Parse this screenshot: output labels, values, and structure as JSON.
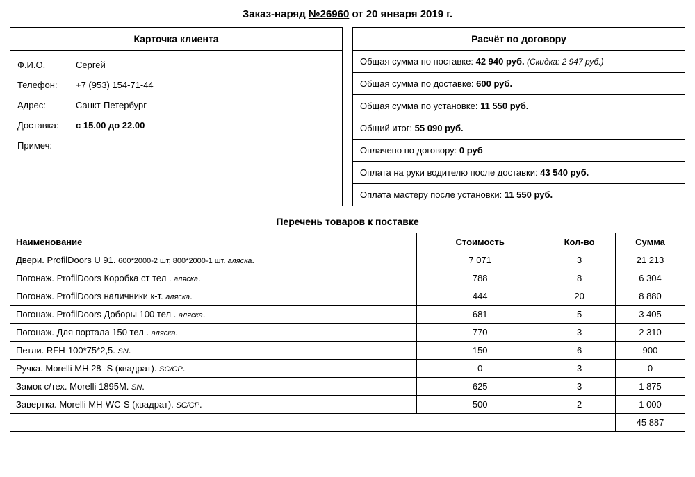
{
  "title": {
    "prefix": "Заказ-наряд ",
    "number_prefix": "№",
    "number": "26960",
    "suffix": " от 20 января 2019 г."
  },
  "client_card": {
    "header": "Карточка клиента",
    "rows": [
      {
        "label": "Ф.И.О.",
        "value": "Сергей",
        "bold": false
      },
      {
        "label": "Телефон:",
        "value": "+7 (953) 154-71-44",
        "bold": false
      },
      {
        "label": "Адрес:",
        "value": "Санкт-Петербург",
        "bold": false
      },
      {
        "label": "Доставка:",
        "value": "с 15.00 до 22.00",
        "bold": true
      },
      {
        "label": "Примеч:",
        "value": "",
        "bold": false
      }
    ]
  },
  "calc_card": {
    "header": "Расчёт по договору",
    "rows": [
      {
        "label": "Общая сумма по поставке: ",
        "amount": "42 940 руб.",
        "discount": "(Скидка: 2 947 руб.)"
      },
      {
        "label": "Общая сумма по доставке: ",
        "amount": "600 руб."
      },
      {
        "label": "Общая сумма по установке: ",
        "amount": "11 550 руб."
      },
      {
        "label": "Общий итог: ",
        "amount": "55 090 руб."
      },
      {
        "label": "Оплачено по договору: ",
        "amount": "0 руб"
      },
      {
        "label": "Оплата на руки водителю после доставки: ",
        "amount": "43 540 руб."
      },
      {
        "label": "Оплата мастеру после установки: ",
        "amount": "11 550 руб."
      }
    ]
  },
  "goods": {
    "section_title": "Перечень товаров к поставке",
    "columns": {
      "name": "Наименование",
      "cost": "Стоимость",
      "qty": "Кол-во",
      "sum": "Сумма"
    },
    "rows": [
      {
        "name": "Двери.  ProfilDoors U 91. ",
        "detail_plain": "600*2000-2 шт, 800*2000-1 шт.",
        "detail": " аляска",
        "tail": ".",
        "cost": "7 071",
        "qty": "3",
        "sum": "21 213"
      },
      {
        "name": "Погонаж.  ProfilDoors Коробка ст тел . ",
        "detail": "аляска",
        "tail": ".",
        "cost": "788",
        "qty": "8",
        "sum": "6 304"
      },
      {
        "name": "Погонаж.  ProfilDoors наличники к-т. ",
        "detail": "аляска",
        "tail": ".",
        "cost": "444",
        "qty": "20",
        "sum": "8 880"
      },
      {
        "name": "Погонаж.  ProfilDoors Доборы 100 тел . ",
        "detail": "аляска",
        "tail": ".",
        "cost": "681",
        "qty": "5",
        "sum": "3 405"
      },
      {
        "name": "Погонаж. Для портала 150 тел . ",
        "detail": "аляска",
        "tail": ".",
        "cost": "770",
        "qty": "3",
        "sum": "2 310"
      },
      {
        "name": "Петли. RFH-100*75*2,5. ",
        "detail": "SN",
        "tail": ".",
        "cost": "150",
        "qty": "6",
        "sum": "900"
      },
      {
        "name": "Ручка. Morelli MH 28 -S (квадрат). ",
        "detail": "SC/CP",
        "tail": ".",
        "cost": "0",
        "qty": "3",
        "sum": "0"
      },
      {
        "name": "Замок с/тех. Morelli 1895M. ",
        "detail": "SN",
        "tail": ".",
        "cost": "625",
        "qty": "3",
        "sum": "1 875"
      },
      {
        "name": "Завертка. Morelli MH-WC-S (квадрат). ",
        "detail": "SC/CP",
        "tail": ".",
        "cost": "500",
        "qty": "2",
        "sum": "1 000"
      }
    ],
    "total": "45 887"
  }
}
